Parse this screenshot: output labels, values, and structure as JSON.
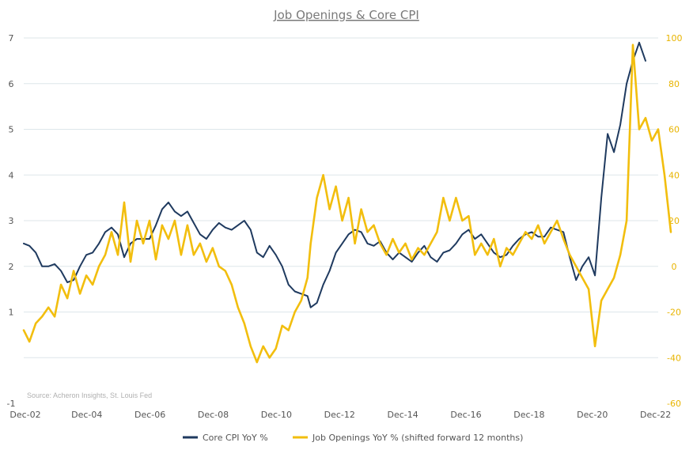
{
  "chart_data": {
    "type": "line",
    "title": "Job Openings & Core CPI",
    "source": "Source: Acheron Insights, St. Louis Fed",
    "x_tick_labels": [
      "Dec-02",
      "Dec-04",
      "Dec-06",
      "Dec-08",
      "Dec-10",
      "Dec-12",
      "Dec-14",
      "Dec-16",
      "Dec-18",
      "Dec-20",
      "Dec-22"
    ],
    "x_range": [
      2002.92,
      2023.0
    ],
    "y_left": {
      "min": -1,
      "max": 7,
      "ticks": [
        "7",
        "6",
        "5",
        "4",
        "3",
        "2",
        "1",
        "-1"
      ],
      "tick_values": [
        7,
        6,
        5,
        4,
        3,
        2,
        1,
        -1
      ]
    },
    "y_right": {
      "min": -60,
      "max": 100,
      "ticks": [
        "100",
        "80",
        "60",
        "40",
        "20",
        "0",
        "-20",
        "-40",
        "-60"
      ],
      "tick_values": [
        100,
        80,
        60,
        40,
        20,
        0,
        -20,
        -40,
        -60
      ]
    },
    "gridlines": [
      7,
      6,
      5,
      4,
      3,
      2,
      1,
      0
    ],
    "colors": {
      "core_cpi": "#1f3a5f",
      "job_openings": "#f2be0e",
      "grid": "#dde6ea",
      "right_axis": "#e8b400"
    },
    "legend": [
      "Core CPI YoY %",
      "Job Openings YoY % (shifted forward 12 months)"
    ],
    "series": [
      {
        "name": "Core CPI YoY %",
        "axis": "left",
        "points": [
          [
            2002.92,
            2.5
          ],
          [
            2003.1,
            2.45
          ],
          [
            2003.3,
            2.3
          ],
          [
            2003.5,
            2.0
          ],
          [
            2003.7,
            2.0
          ],
          [
            2003.9,
            2.05
          ],
          [
            2004.1,
            1.9
          ],
          [
            2004.3,
            1.65
          ],
          [
            2004.5,
            1.7
          ],
          [
            2004.7,
            2.0
          ],
          [
            2004.9,
            2.25
          ],
          [
            2005.1,
            2.3
          ],
          [
            2005.3,
            2.5
          ],
          [
            2005.5,
            2.75
          ],
          [
            2005.7,
            2.85
          ],
          [
            2005.9,
            2.7
          ],
          [
            2006.1,
            2.2
          ],
          [
            2006.3,
            2.5
          ],
          [
            2006.5,
            2.6
          ],
          [
            2006.7,
            2.6
          ],
          [
            2006.9,
            2.6
          ],
          [
            2007.1,
            2.9
          ],
          [
            2007.3,
            3.25
          ],
          [
            2007.5,
            3.4
          ],
          [
            2007.7,
            3.2
          ],
          [
            2007.9,
            3.1
          ],
          [
            2008.1,
            3.2
          ],
          [
            2008.3,
            2.95
          ],
          [
            2008.5,
            2.7
          ],
          [
            2008.7,
            2.6
          ],
          [
            2008.9,
            2.8
          ],
          [
            2009.1,
            2.95
          ],
          [
            2009.3,
            2.85
          ],
          [
            2009.5,
            2.8
          ],
          [
            2009.7,
            2.9
          ],
          [
            2009.9,
            3.0
          ],
          [
            2010.1,
            2.8
          ],
          [
            2010.3,
            2.3
          ],
          [
            2010.5,
            2.2
          ],
          [
            2010.7,
            2.45
          ],
          [
            2010.9,
            2.25
          ],
          [
            2011.1,
            2.0
          ],
          [
            2011.3,
            1.6
          ],
          [
            2011.5,
            1.45
          ],
          [
            2011.7,
            1.4
          ],
          [
            2011.9,
            1.35
          ],
          [
            2012.0,
            1.1
          ],
          [
            2012.2,
            1.2
          ],
          [
            2012.4,
            1.6
          ],
          [
            2012.6,
            1.9
          ],
          [
            2012.8,
            2.3
          ],
          [
            2013.0,
            2.5
          ],
          [
            2013.2,
            2.7
          ],
          [
            2013.4,
            2.8
          ],
          [
            2013.6,
            2.75
          ],
          [
            2013.8,
            2.5
          ],
          [
            2014.0,
            2.45
          ],
          [
            2014.2,
            2.55
          ],
          [
            2014.4,
            2.3
          ],
          [
            2014.6,
            2.15
          ],
          [
            2014.8,
            2.3
          ],
          [
            2015.0,
            2.2
          ],
          [
            2015.2,
            2.1
          ],
          [
            2015.4,
            2.3
          ],
          [
            2015.6,
            2.45
          ],
          [
            2015.8,
            2.2
          ],
          [
            2016.0,
            2.1
          ],
          [
            2016.2,
            2.3
          ],
          [
            2016.4,
            2.35
          ],
          [
            2016.6,
            2.5
          ],
          [
            2016.8,
            2.7
          ],
          [
            2017.0,
            2.8
          ],
          [
            2017.2,
            2.6
          ],
          [
            2017.4,
            2.7
          ],
          [
            2017.6,
            2.5
          ],
          [
            2017.8,
            2.3
          ],
          [
            2018.0,
            2.2
          ],
          [
            2018.2,
            2.25
          ],
          [
            2018.4,
            2.45
          ],
          [
            2018.6,
            2.6
          ],
          [
            2018.8,
            2.7
          ],
          [
            2019.0,
            2.75
          ],
          [
            2019.2,
            2.65
          ],
          [
            2019.4,
            2.65
          ],
          [
            2019.6,
            2.85
          ],
          [
            2019.8,
            2.8
          ],
          [
            2020.0,
            2.75
          ],
          [
            2020.2,
            2.2
          ],
          [
            2020.4,
            1.7
          ],
          [
            2020.6,
            2.0
          ],
          [
            2020.8,
            2.2
          ],
          [
            2021.0,
            1.8
          ],
          [
            2021.2,
            3.5
          ],
          [
            2021.4,
            4.9
          ],
          [
            2021.6,
            4.5
          ],
          [
            2021.8,
            5.1
          ],
          [
            2022.0,
            6.0
          ],
          [
            2022.2,
            6.5
          ],
          [
            2022.4,
            6.9
          ],
          [
            2022.6,
            6.5
          ]
        ]
      },
      {
        "name": "Job Openings YoY % (shifted forward 12 months)",
        "axis": "right",
        "points": [
          [
            2002.92,
            -28
          ],
          [
            2003.1,
            -33
          ],
          [
            2003.3,
            -25
          ],
          [
            2003.5,
            -22
          ],
          [
            2003.7,
            -18
          ],
          [
            2003.9,
            -22
          ],
          [
            2004.1,
            -8
          ],
          [
            2004.3,
            -14
          ],
          [
            2004.5,
            -2
          ],
          [
            2004.7,
            -12
          ],
          [
            2004.9,
            -4
          ],
          [
            2005.1,
            -8
          ],
          [
            2005.3,
            0
          ],
          [
            2005.5,
            5
          ],
          [
            2005.7,
            15
          ],
          [
            2005.9,
            5
          ],
          [
            2006.1,
            28
          ],
          [
            2006.3,
            2
          ],
          [
            2006.5,
            20
          ],
          [
            2006.7,
            10
          ],
          [
            2006.9,
            20
          ],
          [
            2007.1,
            3
          ],
          [
            2007.3,
            18
          ],
          [
            2007.5,
            12
          ],
          [
            2007.7,
            20
          ],
          [
            2007.9,
            5
          ],
          [
            2008.1,
            18
          ],
          [
            2008.3,
            5
          ],
          [
            2008.5,
            10
          ],
          [
            2008.7,
            2
          ],
          [
            2008.9,
            8
          ],
          [
            2009.1,
            0
          ],
          [
            2009.3,
            -2
          ],
          [
            2009.5,
            -8
          ],
          [
            2009.7,
            -18
          ],
          [
            2009.9,
            -25
          ],
          [
            2010.1,
            -35
          ],
          [
            2010.3,
            -42
          ],
          [
            2010.5,
            -35
          ],
          [
            2010.7,
            -40
          ],
          [
            2010.9,
            -36
          ],
          [
            2011.1,
            -26
          ],
          [
            2011.3,
            -28
          ],
          [
            2011.5,
            -20
          ],
          [
            2011.7,
            -15
          ],
          [
            2011.9,
            -5
          ],
          [
            2012.0,
            10
          ],
          [
            2012.2,
            30
          ],
          [
            2012.4,
            40
          ],
          [
            2012.6,
            25
          ],
          [
            2012.8,
            35
          ],
          [
            2013.0,
            20
          ],
          [
            2013.2,
            30
          ],
          [
            2013.4,
            10
          ],
          [
            2013.6,
            25
          ],
          [
            2013.8,
            15
          ],
          [
            2014.0,
            18
          ],
          [
            2014.2,
            10
          ],
          [
            2014.4,
            5
          ],
          [
            2014.6,
            12
          ],
          [
            2014.8,
            6
          ],
          [
            2015.0,
            10
          ],
          [
            2015.2,
            3
          ],
          [
            2015.4,
            8
          ],
          [
            2015.6,
            5
          ],
          [
            2015.8,
            10
          ],
          [
            2016.0,
            15
          ],
          [
            2016.2,
            30
          ],
          [
            2016.4,
            20
          ],
          [
            2016.6,
            30
          ],
          [
            2016.8,
            20
          ],
          [
            2017.0,
            22
          ],
          [
            2017.2,
            5
          ],
          [
            2017.4,
            10
          ],
          [
            2017.6,
            5
          ],
          [
            2017.8,
            12
          ],
          [
            2018.0,
            0
          ],
          [
            2018.2,
            8
          ],
          [
            2018.4,
            5
          ],
          [
            2018.6,
            10
          ],
          [
            2018.8,
            15
          ],
          [
            2019.0,
            12
          ],
          [
            2019.2,
            18
          ],
          [
            2019.4,
            10
          ],
          [
            2019.6,
            15
          ],
          [
            2019.8,
            20
          ],
          [
            2020.0,
            12
          ],
          [
            2020.2,
            5
          ],
          [
            2020.4,
            0
          ],
          [
            2020.6,
            -5
          ],
          [
            2020.8,
            -10
          ],
          [
            2021.0,
            -35
          ],
          [
            2021.2,
            -15
          ],
          [
            2021.4,
            -10
          ],
          [
            2021.6,
            -5
          ],
          [
            2021.8,
            5
          ],
          [
            2022.0,
            20
          ],
          [
            2022.2,
            97
          ],
          [
            2022.4,
            60
          ],
          [
            2022.6,
            65
          ],
          [
            2022.8,
            55
          ],
          [
            2023.0,
            60
          ],
          [
            2023.2,
            40
          ],
          [
            2023.4,
            15
          ]
        ]
      }
    ]
  }
}
